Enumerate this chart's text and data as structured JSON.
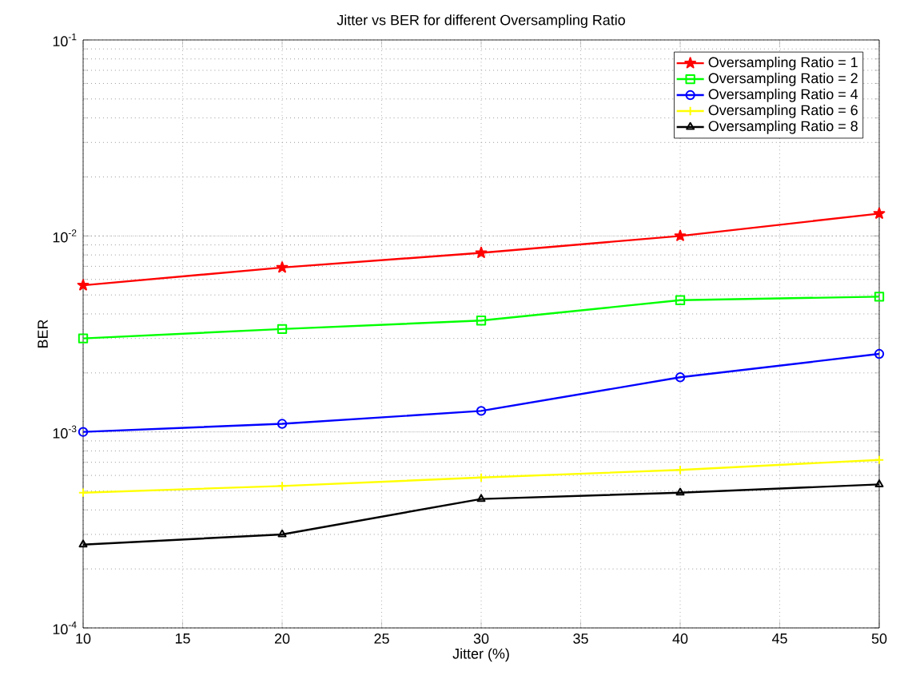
{
  "chart_data": {
    "type": "line",
    "title": "Jitter vs BER for different Oversampling Ratio",
    "xlabel": "Jitter (%)",
    "ylabel": "BER",
    "x": [
      10,
      20,
      30,
      40,
      50
    ],
    "log": "y",
    "grid": true,
    "legend": "top right",
    "xlim": [
      10,
      50
    ],
    "xticks": [
      10,
      15,
      20,
      25,
      30,
      35,
      40,
      45,
      50
    ],
    "ylim": [
      0.0001,
      0.1
    ],
    "yticks": [
      {
        "value": 0.0001,
        "label": "10$^{-4}$"
      },
      {
        "value": 0.001,
        "label": "10$^{-3}$"
      },
      {
        "value": 0.01,
        "label": "10$^{-2}$"
      },
      {
        "value": 0.1,
        "label": "10$^{-1}$"
      }
    ],
    "series": [
      {
        "name": "Oversampling Ratio = 1",
        "color": "#ff0000",
        "marker": "star",
        "values": [
          0.0056,
          0.0069,
          0.0082,
          0.01,
          0.013
        ]
      },
      {
        "name": "Oversampling Ratio = 2",
        "color": "#00ff00",
        "marker": "square",
        "values": [
          0.003,
          0.00335,
          0.0037,
          0.0047,
          0.0049
        ]
      },
      {
        "name": "Oversampling Ratio = 4",
        "color": "#0000ff",
        "marker": "circle",
        "values": [
          0.001,
          0.0011,
          0.00128,
          0.0019,
          0.0025
        ]
      },
      {
        "name": "Oversampling Ratio = 6",
        "color": "#ffff00",
        "marker": "cross",
        "values": [
          0.00049,
          0.00053,
          0.000585,
          0.00064,
          0.00072
        ]
      },
      {
        "name": "Oversampling Ratio = 8",
        "color": "#000000",
        "marker": "triangle",
        "values": [
          0.000266,
          0.0003,
          0.000455,
          0.00049,
          0.00054
        ]
      }
    ]
  }
}
